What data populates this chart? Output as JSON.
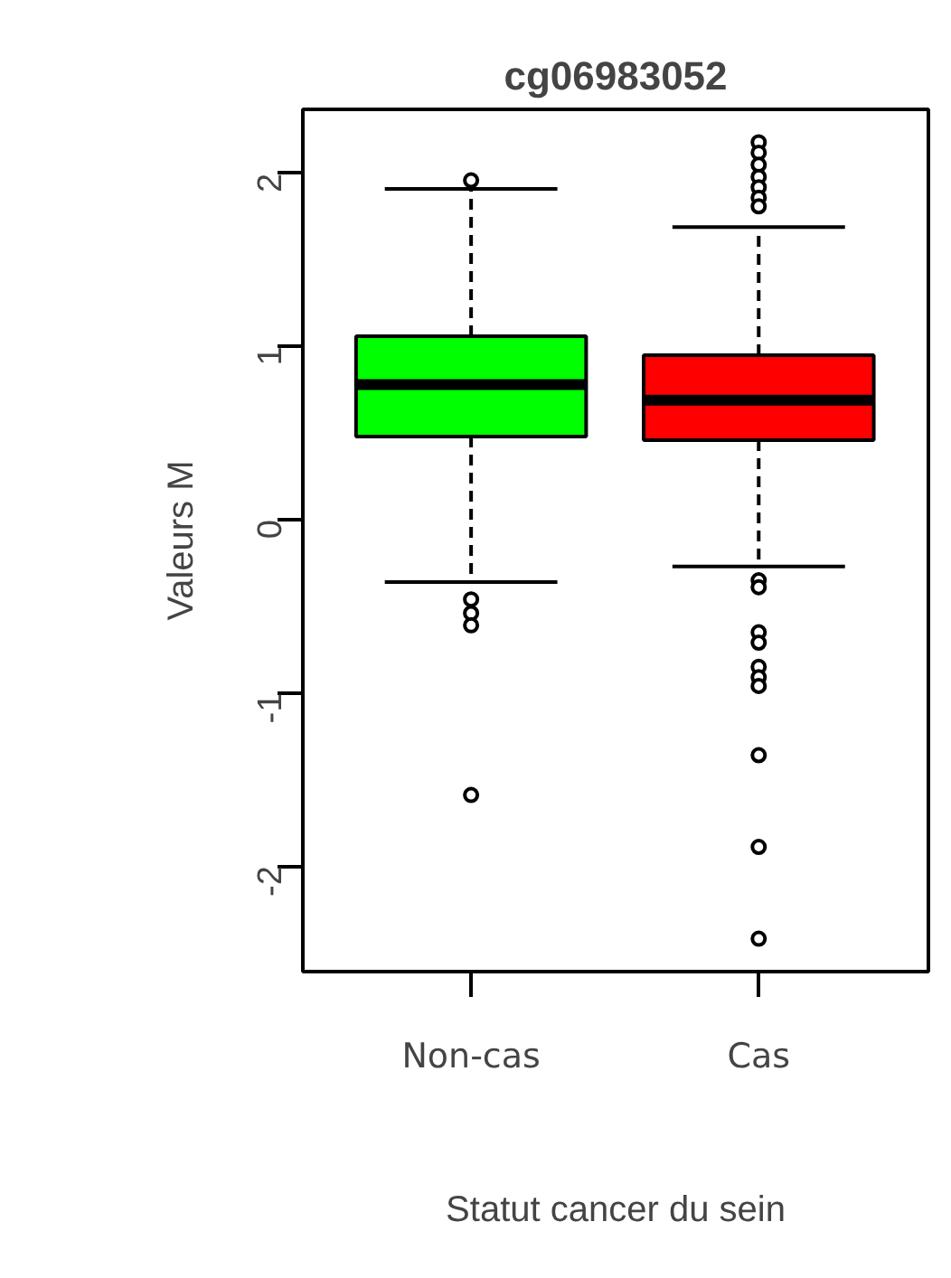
{
  "chart_data": {
    "type": "box",
    "title": "cg06983052",
    "xlabel": "Statut cancer du sein",
    "ylabel": "Valeurs M",
    "categories": [
      "Non-cas",
      "Cas"
    ],
    "colors": [
      "#00ff00",
      "#ff0000"
    ],
    "boxes": [
      {
        "low": -0.36,
        "q1": 0.48,
        "median": 0.78,
        "q3": 1.06,
        "high": 1.91,
        "outliers": [
          1.96,
          -0.46,
          -0.54,
          -0.61,
          -1.59
        ]
      },
      {
        "low": -0.27,
        "q1": 0.46,
        "median": 0.69,
        "q3": 0.95,
        "high": 1.69,
        "outliers": [
          2.18,
          2.12,
          2.05,
          1.98,
          1.92,
          1.86,
          1.81,
          -0.35,
          -0.39,
          -0.65,
          -0.71,
          -0.85,
          -0.91,
          -0.96,
          -1.36,
          -1.89,
          -2.42
        ]
      }
    ],
    "ylim": [
      -2.61,
      2.37
    ],
    "yticks": [
      -2,
      -1,
      0,
      1,
      2
    ]
  }
}
